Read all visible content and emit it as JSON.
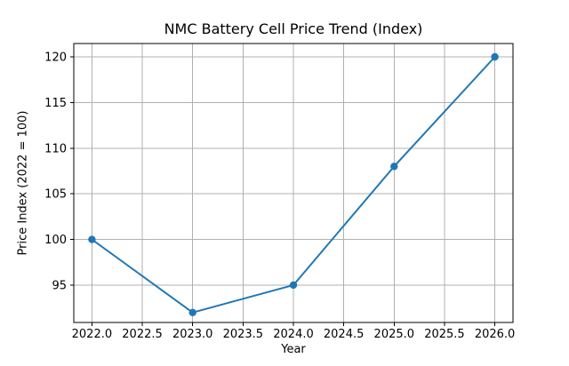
{
  "chart_data": {
    "type": "line",
    "title": "NMC Battery Cell Price Trend (Index)",
    "xlabel": "Year",
    "ylabel": "Price Index (2022 = 100)",
    "x": [
      2022,
      2023,
      2024,
      2025,
      2026
    ],
    "y": [
      100,
      92,
      95,
      108,
      120
    ],
    "series": [
      {
        "name": "Price Index",
        "x": [
          2022,
          2023,
          2024,
          2025,
          2026
        ],
        "values": [
          100,
          92,
          95,
          108,
          120
        ]
      }
    ],
    "x_ticks": [
      2022.0,
      2022.5,
      2023.0,
      2023.5,
      2024.0,
      2024.5,
      2025.0,
      2025.5,
      2026.0
    ],
    "x_tick_labels": [
      "2022.0",
      "2022.5",
      "2023.0",
      "2023.5",
      "2024.0",
      "2024.5",
      "2025.0",
      "2025.5",
      "2026.0"
    ],
    "y_ticks": [
      95,
      100,
      105,
      110,
      115,
      120
    ],
    "y_tick_labels": [
      "95",
      "100",
      "105",
      "110",
      "115",
      "120"
    ],
    "xlim": [
      2021.82,
      2026.18
    ],
    "ylim": [
      90.91,
      121.46
    ],
    "grid": true,
    "legend": false,
    "line_color": "#1f77b4",
    "marker": "o",
    "grid_color": "#b0b0b0",
    "spine_color": "#000000",
    "background_color": "#ffffff"
  }
}
